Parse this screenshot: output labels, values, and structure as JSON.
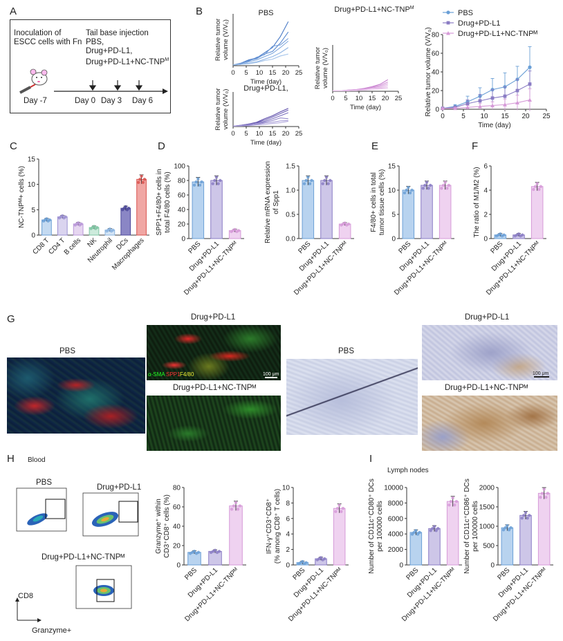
{
  "colors": {
    "pbs": "#6a9fd6",
    "drug": "#8a7cc4",
    "nc": "#d69ad8",
    "axis": "#333333",
    "pbs_fill": "#b8d3ef",
    "drug_fill": "#cdc6e8",
    "nc_fill": "#efd2f0"
  },
  "labels": {
    "A": "A",
    "B": "B",
    "C": "C",
    "D": "D",
    "E": "E",
    "F": "F",
    "G": "G",
    "H": "H",
    "I": "I"
  },
  "panel_a": {
    "inoculation_line1": "Inoculation of",
    "inoculation_line2": "ESCC cells with Fn",
    "injection_title": "Tail base injection",
    "injection_item1": "PBS,",
    "injection_item2": "Drug+PD-L1,",
    "injection_item3": "Drug+PD-L1+NC-TNP",
    "injection_item3_sup": "M",
    "day_neg7": "Day -7",
    "day0": "Day 0",
    "day3": "Day 3",
    "day6": "Day 6"
  },
  "panel_b": {
    "ylabel": "Relative tumor volume (V/V₀)",
    "ylabel_line1": "Relative tumor",
    "ylabel_line2": "volume (V/V₀)",
    "xlabel": "Time (day)",
    "title_pbs": "PBS",
    "title_drug": "Drug+PD-L1,",
    "title_nc": "Drug+PD-L1+NC-TNP",
    "title_nc_sup": "M",
    "summary_ylabel": "Relative tumor volume (V/V₀)",
    "legend": [
      "PBS",
      "Drug+PD-L1",
      "Drug+PD-L1+NC-TNPᴹ"
    ]
  },
  "panel_c": {
    "ylabel": "NC-TNPᴹ+ cells (%)",
    "categories": [
      "CD8 T",
      "CD4 T",
      "B cells",
      "NK",
      "Neutrophil",
      "DCs",
      "Macrophages"
    ]
  },
  "panel_d1": {
    "ylabel_line1": "SPP1+F4/80+ cells in",
    "ylabel_line2": "total F4/80 cells (%)"
  },
  "panel_d2": {
    "ylabel_line1": "Relative mRNA expression",
    "ylabel_line2": "of Spp1"
  },
  "panel_e": {
    "ylabel_line1": "F4/80+ cells in total",
    "ylabel_line2": "tumor tissue cells (%)"
  },
  "panel_f": {
    "ylabel": "The ratio of M1/M2 (%)"
  },
  "group_names": [
    "PBS",
    "Drug+PD-L1",
    "Drug+PD-L1+NC-TNPᴹ"
  ],
  "panel_g": {
    "pbs": "PBS",
    "drug": "Drug+PD-L1",
    "nc": "Drug+PD-L1+NC-TNPᴹ",
    "stain_sma": "α-SMA",
    "stain_spp1": "SPP1",
    "stain_f480": "F4/80",
    "scale": "100 μm",
    "ihc_pbs": "PBS",
    "ihc_drug": "Drug+PD-L1",
    "ihc_nc": "Drug+PD-L1+NC-TNPᴹ",
    "ihc_scale": "100 μm"
  },
  "panel_h": {
    "blood": "Blood",
    "pbs": "PBS",
    "drug": "Drug+PD-L1",
    "nc": "Drug+PD-L1+NC-TNPᴹ",
    "cd8": "CD8",
    "granzyme": "Granzyme+",
    "bar1_ylabel_line1": "Granzyme⁺ within",
    "bar1_ylabel_line2": "CD3⁺CD8⁺ cells (%)",
    "bar2_ylabel_line1": "IFN-γ⁺CD3⁺CD8⁺",
    "bar2_ylabel_line2": "(% among CD8⁺ T cells)"
  },
  "panel_i": {
    "lymph": "Lymph nodes",
    "bar1_ylabel_line1": "Number of CD11c⁺CD80⁺ DCs",
    "bar1_ylabel_line2": "per 100000 cells",
    "bar2_ylabel_line1": "Number of CD11c⁺CD86⁺ DCs",
    "bar2_ylabel_line2": "per 100000 cells"
  },
  "chart_data": [
    {
      "id": "b_pbs",
      "type": "line",
      "title": "PBS",
      "xlabel": "Time (day)",
      "ylabel": "Relative tumor volume (V/V₀)",
      "xlim": [
        0,
        25
      ],
      "ylim": [
        0,
        80
      ],
      "xticks": [
        0,
        5,
        10,
        15,
        20,
        25
      ],
      "x": [
        0,
        3,
        6,
        9,
        12,
        15,
        18,
        21
      ],
      "series": [
        {
          "values": [
            1,
            4,
            9,
            12,
            20,
            28,
            45,
            68
          ]
        },
        {
          "values": [
            1,
            3,
            8,
            11,
            18,
            22,
            35,
            52
          ]
        },
        {
          "values": [
            1,
            4,
            7,
            13,
            17,
            30,
            32,
            42
          ]
        },
        {
          "values": [
            1,
            2,
            6,
            9,
            14,
            19,
            28,
            38
          ]
        },
        {
          "values": [
            1,
            2,
            4,
            6,
            10,
            14,
            20,
            28
          ]
        },
        {
          "values": [
            1,
            2,
            3,
            5,
            8,
            10,
            15,
            18
          ]
        }
      ]
    },
    {
      "id": "b_drug",
      "type": "line",
      "title": "Drug+PD-L1,",
      "xlabel": "Time (day)",
      "ylabel": "Relative tumor volume (V/V₀)",
      "xlim": [
        0,
        25
      ],
      "ylim": [
        0,
        80
      ],
      "xticks": [
        0,
        5,
        10,
        15,
        20,
        25
      ],
      "x": [
        0,
        3,
        6,
        9,
        12,
        15,
        18,
        21
      ],
      "series": [
        {
          "values": [
            1,
            3,
            6,
            10,
            18,
            25,
            34,
            42
          ]
        },
        {
          "values": [
            1,
            2,
            5,
            9,
            15,
            22,
            30,
            38
          ]
        },
        {
          "values": [
            1,
            3,
            6,
            8,
            12,
            18,
            25,
            32
          ]
        },
        {
          "values": [
            1,
            2,
            4,
            6,
            10,
            14,
            20,
            18
          ]
        },
        {
          "values": [
            1,
            2,
            3,
            5,
            8,
            10,
            13,
            14
          ]
        },
        {
          "values": [
            1,
            1,
            2,
            4,
            5,
            7,
            9,
            12
          ]
        }
      ]
    },
    {
      "id": "b_nc",
      "type": "line",
      "title": "Drug+PD-L1+NC-TNPᴹ",
      "xlabel": "Time (day)",
      "ylabel": "Relative tumor volume (V/V₀)",
      "xlim": [
        0,
        25
      ],
      "ylim": [
        0,
        80
      ],
      "xticks": [
        0,
        5,
        10,
        15,
        20,
        25
      ],
      "x": [
        0,
        3,
        6,
        9,
        12,
        15,
        18,
        21
      ],
      "series": [
        {
          "values": [
            1,
            1,
            2,
            3,
            5,
            8,
            12,
            20
          ]
        },
        {
          "values": [
            1,
            1,
            2,
            3,
            4,
            7,
            10,
            16
          ]
        },
        {
          "values": [
            1,
            1,
            1,
            2,
            4,
            6,
            8,
            13
          ]
        },
        {
          "values": [
            1,
            1,
            1,
            2,
            3,
            5,
            6,
            10
          ]
        },
        {
          "values": [
            1,
            1,
            1,
            2,
            2,
            3,
            5,
            7
          ]
        },
        {
          "values": [
            1,
            1,
            1,
            1,
            2,
            3,
            4,
            5
          ]
        }
      ]
    },
    {
      "id": "b_summary",
      "type": "line",
      "xlabel": "Time (day)",
      "ylabel": "Relative tumor volume (V/V₀)",
      "xlim": [
        0,
        25
      ],
      "ylim": [
        0,
        80
      ],
      "xticks": [
        0,
        5,
        10,
        15,
        20,
        25
      ],
      "yticks": [
        0,
        20,
        40,
        60,
        80
      ],
      "x": [
        0,
        3,
        6,
        9,
        12,
        15,
        18,
        21
      ],
      "legend": "top-left",
      "series": [
        {
          "name": "PBS",
          "values": [
            1,
            3,
            8,
            14,
            21,
            24,
            32,
            45
          ],
          "err": [
            0.5,
            2,
            6,
            9,
            12,
            15,
            14,
            22
          ]
        },
        {
          "name": "Drug+PD-L1",
          "values": [
            1,
            2,
            6,
            9,
            12,
            14,
            20,
            27
          ],
          "err": [
            0.5,
            1.5,
            4,
            7,
            9,
            10,
            12,
            14
          ]
        },
        {
          "name": "Drug+PD-L1+NC-TNPᴹ",
          "values": [
            1,
            1,
            2,
            3,
            4,
            5,
            7,
            10
          ],
          "err": [
            0.3,
            1,
            2,
            3,
            4,
            6,
            8,
            12
          ]
        }
      ]
    },
    {
      "id": "c",
      "type": "bar",
      "ylabel": "NC-TNPᴹ+ cells (%)",
      "ylim": [
        0,
        15
      ],
      "yticks": [
        0,
        5,
        10,
        15
      ],
      "categories": [
        "CD8 T",
        "CD4 T",
        "B cells",
        "NK",
        "Neutrophil",
        "DCs",
        "Macrophages"
      ],
      "values": [
        3.0,
        3.6,
        2.2,
        1.5,
        1.0,
        5.3,
        11.0
      ]
    },
    {
      "id": "d1",
      "type": "bar",
      "ylim": [
        0,
        100
      ],
      "yticks": [
        0,
        20,
        40,
        60,
        80,
        100
      ],
      "categories": [
        "PBS",
        "Drug+PD-L1",
        "Drug+PD-L1+NC-TNPᴹ"
      ],
      "values": [
        78,
        80,
        11
      ]
    },
    {
      "id": "d2",
      "type": "bar",
      "ylim": [
        0,
        1.5
      ],
      "yticks": [
        0.0,
        0.5,
        1.0,
        1.5
      ],
      "categories": [
        "PBS",
        "Drug+PD-L1",
        "Drug+PD-L1+NC-TNPᴹ"
      ],
      "values": [
        1.2,
        1.2,
        0.3
      ]
    },
    {
      "id": "e",
      "type": "bar",
      "ylim": [
        0,
        15
      ],
      "yticks": [
        0,
        5,
        10,
        15
      ],
      "categories": [
        "PBS",
        "Drug+PD-L1",
        "Drug+PD-L1+NC-TNPᴹ"
      ],
      "values": [
        10.0,
        11.0,
        11.0
      ]
    },
    {
      "id": "f",
      "type": "bar",
      "ylim": [
        0,
        6
      ],
      "yticks": [
        0,
        2,
        4,
        6
      ],
      "categories": [
        "PBS",
        "Drug+PD-L1",
        "Drug+PD-L1+NC-TNPᴹ"
      ],
      "values": [
        0.3,
        0.3,
        4.3
      ]
    },
    {
      "id": "h1",
      "type": "bar",
      "ylim": [
        0,
        80
      ],
      "yticks": [
        0,
        20,
        40,
        60,
        80
      ],
      "categories": [
        "PBS",
        "Drug+PD-L1",
        "Drug+PD-L1+NC-TNPᴹ"
      ],
      "values": [
        13,
        14,
        61
      ]
    },
    {
      "id": "h2",
      "type": "bar",
      "ylim": [
        0,
        10
      ],
      "yticks": [
        0,
        2,
        4,
        6,
        8,
        10
      ],
      "categories": [
        "PBS",
        "Drug+PD-L1",
        "Drug+PD-L1+NC-TNPᴹ"
      ],
      "values": [
        0.3,
        0.8,
        7.3
      ]
    },
    {
      "id": "i1",
      "type": "bar",
      "ylim": [
        0,
        10000
      ],
      "yticks": [
        0,
        2000,
        4000,
        6000,
        8000,
        10000
      ],
      "categories": [
        "PBS",
        "Drug+PD-L1",
        "Drug+PD-L1+NC-TNPᴹ"
      ],
      "values": [
        4200,
        4700,
        8200
      ]
    },
    {
      "id": "i2",
      "type": "bar",
      "ylim": [
        0,
        2000
      ],
      "yticks": [
        0,
        500,
        1000,
        1500,
        2000
      ],
      "categories": [
        "PBS",
        "Drug+PD-L1",
        "Drug+PD-L1+NC-TNPᴹ"
      ],
      "values": [
        960,
        1280,
        1850
      ]
    }
  ]
}
